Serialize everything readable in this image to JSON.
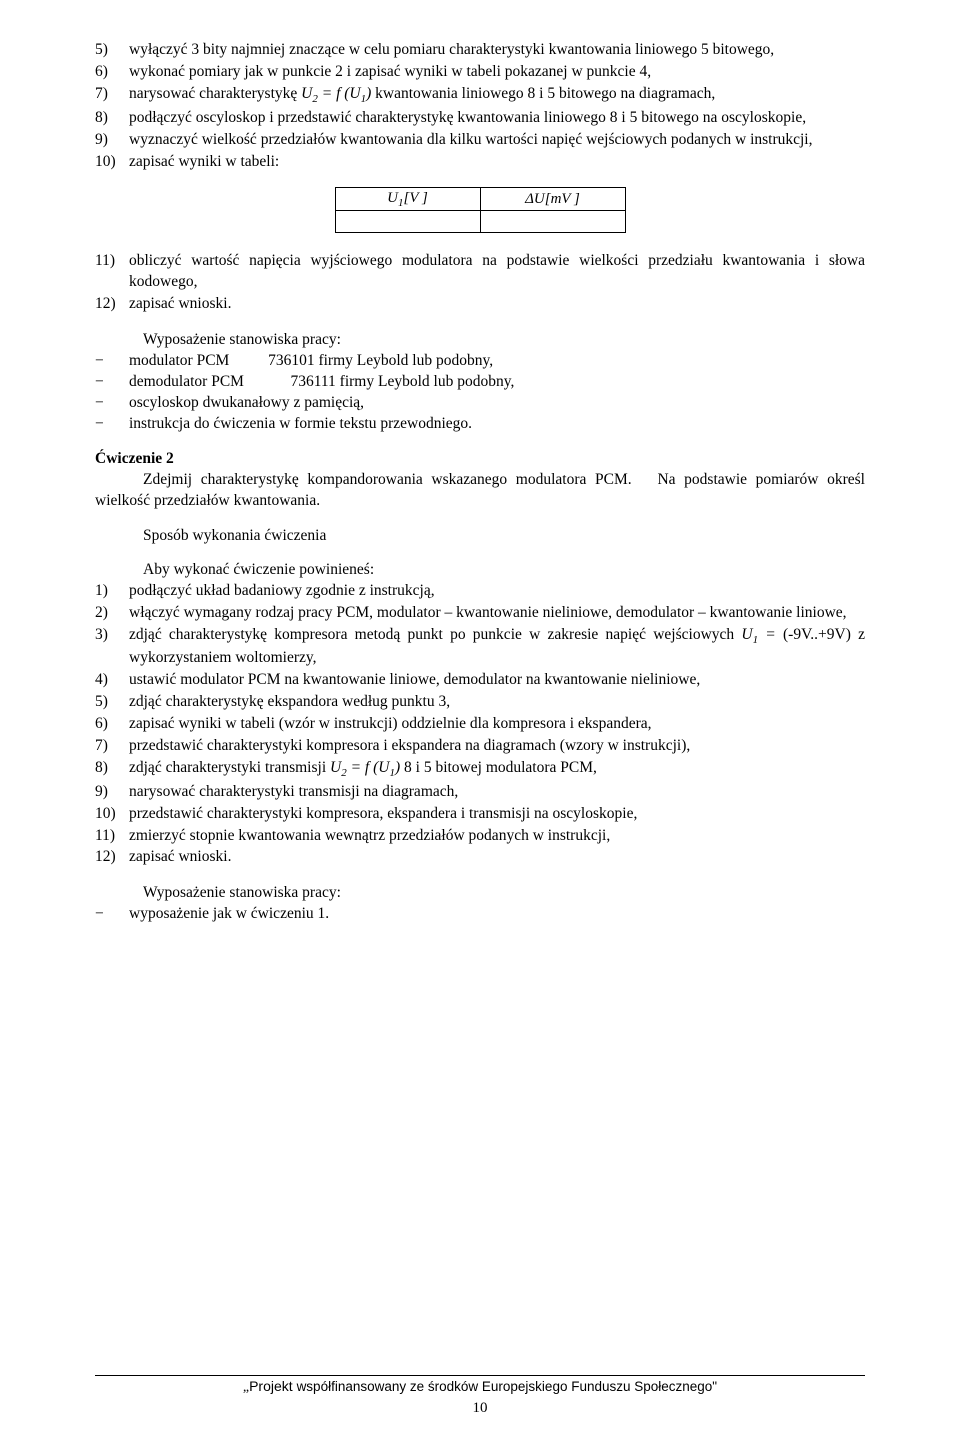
{
  "list_a": {
    "items": [
      {
        "n": "5)",
        "text": "wyłączyć 3 bity najmniej znaczące w celu pomiaru charakterystyki kwantowania liniowego 5 bitowego,"
      },
      {
        "n": "6)",
        "text": "wykonać pomiary jak w punkcie 2 i zapisać wyniki w tabeli pokazanej w punkcie 4,"
      },
      {
        "n": "7)",
        "text_pre": "narysować charakterystykę ",
        "eq": "U",
        "sub1": "2",
        "eq2": " = f (U",
        "sub2": "1",
        "eq3": ")",
        "text_post": " kwantowania liniowego 8 i 5 bitowego na diagramach,"
      },
      {
        "n": "8)",
        "text": "podłączyć oscyloskop i przedstawić charakterystykę kwantowania liniowego 8 i 5 bitowego na oscyloskopie,"
      },
      {
        "n": "9)",
        "text": "wyznaczyć wielkość przedziałów kwantowania dla kilku wartości napięć wejściowych podanych w instrukcji,"
      },
      {
        "n": "10)",
        "text": "zapisać wyniki w tabeli:"
      }
    ]
  },
  "table": {
    "h1": "U₁[V ]",
    "h2": "ΔU[mV ]"
  },
  "list_a2": {
    "items": [
      {
        "n": "11)",
        "text": "obliczyć wartość napięcia wyjściowego modulatora na podstawie wielkości przedziału kwantowania i słowa kodowego,"
      },
      {
        "n": "12)",
        "text": "zapisać wnioski."
      }
    ]
  },
  "equip1": {
    "heading": "Wyposażenie stanowiska pracy:",
    "items": [
      "modulator PCM          736101 firmy Leybold lub podobny,",
      "demodulator PCM            736111 firmy Leybold lub podobny,",
      "oscyloskop dwukanałowy z pamięcią,",
      "instrukcja do ćwiczenia w formie tekstu przewodniego."
    ]
  },
  "ex2": {
    "title": "Ćwiczenie 2",
    "para": "Zdejmij charakterystykę kompandorowania wskazanego modulatora PCM.   Na podstawie pomiarów określ wielkość przedziałów kwantowania."
  },
  "sposob": "Sposób wykonania ćwiczenia",
  "aby": "Aby wykonać ćwiczenie powinieneś:",
  "list_b": {
    "items": [
      {
        "n": "1)",
        "text": "podłączyć układ badaniowy zgodnie z instrukcją,"
      },
      {
        "n": "2)",
        "text": "włączyć wymagany rodzaj pracy PCM, modulator – kwantowanie nieliniowe, demodulator – kwantowanie liniowe,"
      },
      {
        "n": "3)",
        "text_pre": "zdjąć charakterystykę kompresora metodą punkt po punkcie w zakresie napięć wejściowych ",
        "eq": "U",
        "sub1": "1",
        "eq2": " =",
        "text_post": " (-9V..+9V) z wykorzystaniem woltomierzy,"
      },
      {
        "n": "4)",
        "text": "ustawić modulator PCM na kwantowanie liniowe, demodulator na kwantowanie nieliniowe,"
      },
      {
        "n": "5)",
        "text": "zdjąć charakterystykę ekspandora według punktu 3,"
      },
      {
        "n": "6)",
        "text": "zapisać wyniki w tabeli (wzór w instrukcji) oddzielnie dla kompresora i ekspandera,"
      },
      {
        "n": "7)",
        "text": "przedstawić charakterystyki kompresora i ekspandera na diagramach (wzory w instrukcji),"
      },
      {
        "n": "8)",
        "text_pre": "zdjąć charakterystyki transmisji ",
        "eq": "U",
        "sub1": "2",
        "eq2": " = f (U",
        "sub2": "1",
        "eq3": ")",
        "text_post": "  8 i 5 bitowej modulatora PCM,"
      },
      {
        "n": "9)",
        "text": "narysować charakterystyki transmisji na diagramach,"
      },
      {
        "n": "10)",
        "text": "przedstawić charakterystyki kompresora, ekspandera i transmisji na oscyloskopie,"
      },
      {
        "n": "11)",
        "text": "zmierzyć stopnie kwantowania wewnątrz przedziałów podanych w instrukcji,"
      },
      {
        "n": "12)",
        "text": "zapisać wnioski."
      }
    ]
  },
  "equip2": {
    "heading": "Wyposażenie stanowiska pracy:",
    "items": [
      "wyposażenie jak w ćwiczeniu 1."
    ]
  },
  "footer": {
    "line": "„Projekt współfinansowany ze środków Europejskiego Funduszu Społecznego”",
    "page": "10"
  }
}
